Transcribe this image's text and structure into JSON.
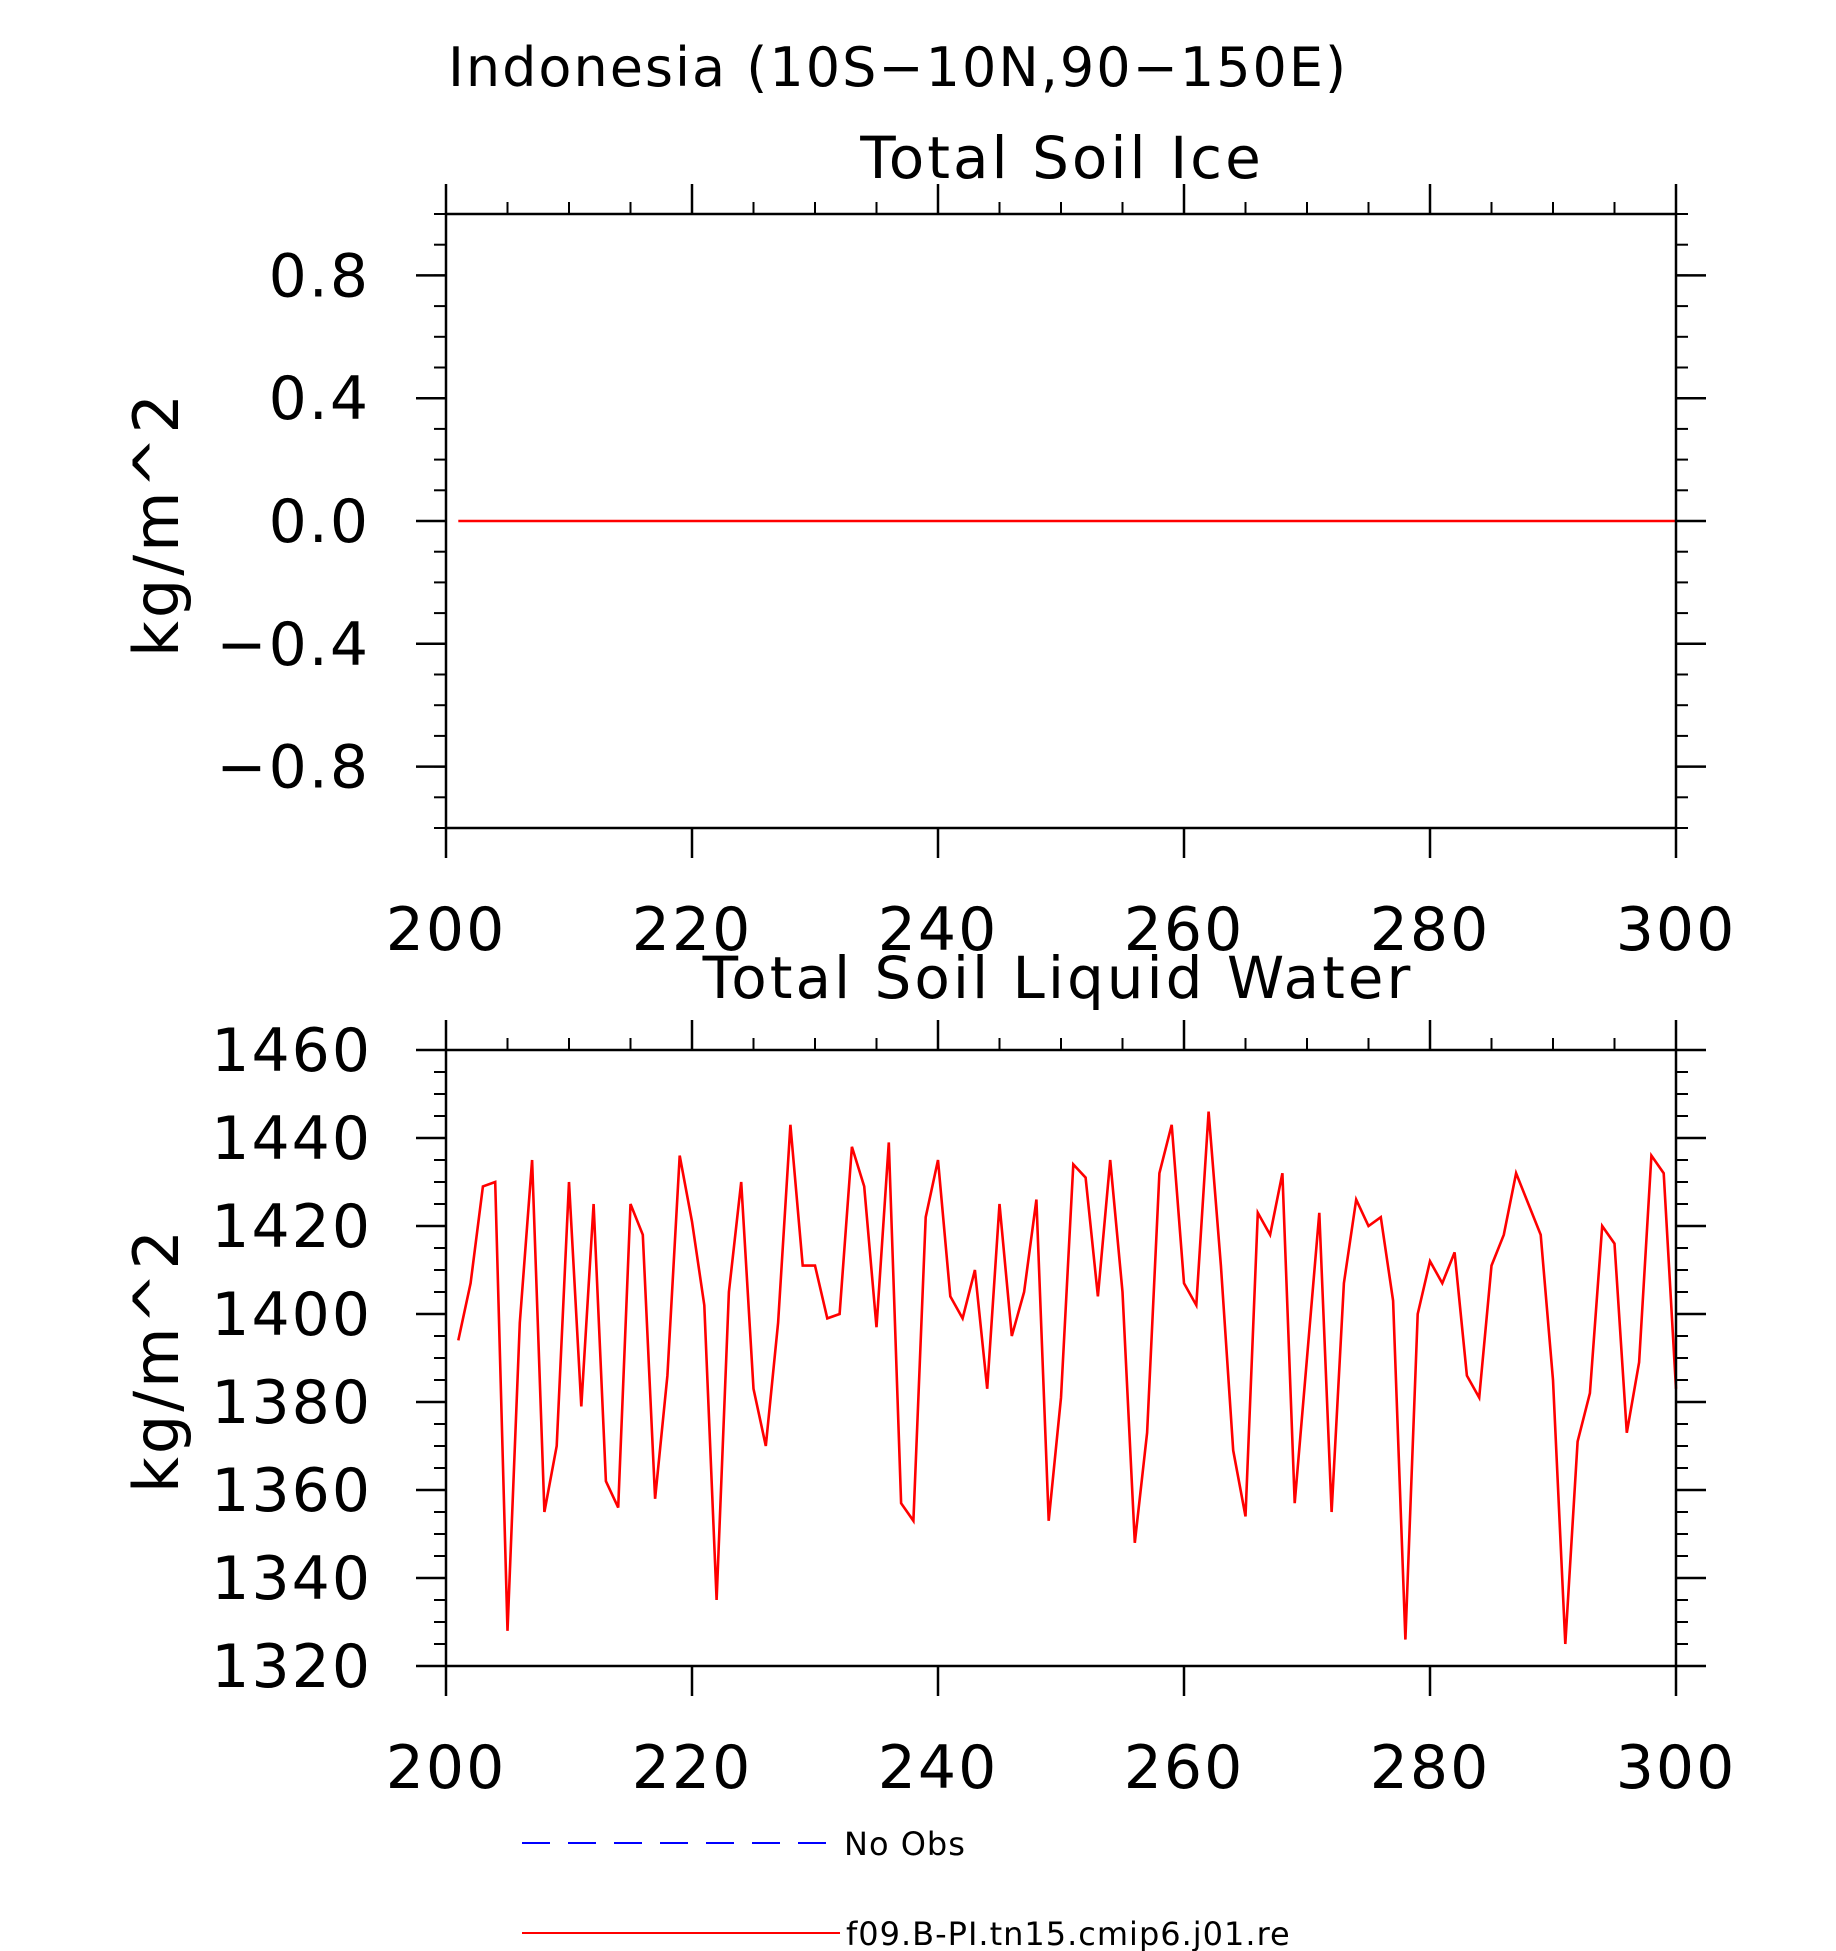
{
  "figure_title": "Indonesia (10S-10N,90-150E)",
  "colors": {
    "model": "#ff0000",
    "obs": "#0000ff",
    "axes": "#000000"
  },
  "legend": [
    {
      "label": "No Obs",
      "style": "dashed",
      "color": "#0000ff"
    },
    {
      "label": "f09.B-PI.tn15.cmip6.j01.re",
      "style": "solid",
      "color": "#ff0000"
    }
  ],
  "chart_data": [
    {
      "type": "line",
      "title": "Total Soil Ice",
      "xlabel": "",
      "ylabel": "kg/m^2",
      "xlim": [
        200,
        300
      ],
      "ylim": [
        -1,
        1
      ],
      "x_ticks": [
        200,
        220,
        240,
        260,
        280,
        300
      ],
      "x_tick_labels": [
        "200",
        "220",
        "240",
        "260",
        "280",
        "300"
      ],
      "y_ticks": [
        -0.8,
        -0.4,
        0,
        0.4,
        0.8
      ],
      "y_tick_labels": [
        "-0.8",
        "-0.4",
        "0.0",
        "0.4",
        "0.8"
      ],
      "grid": false,
      "series": [
        {
          "name": "f09.B-PI.tn15.cmip6.j01.re",
          "color": "#ff0000",
          "x_start": 201,
          "x_step": 1,
          "values": [
            0,
            0,
            0,
            0,
            0,
            0,
            0,
            0,
            0,
            0,
            0,
            0,
            0,
            0,
            0,
            0,
            0,
            0,
            0,
            0,
            0,
            0,
            0,
            0,
            0,
            0,
            0,
            0,
            0,
            0,
            0,
            0,
            0,
            0,
            0,
            0,
            0,
            0,
            0,
            0,
            0,
            0,
            0,
            0,
            0,
            0,
            0,
            0,
            0,
            0,
            0,
            0,
            0,
            0,
            0,
            0,
            0,
            0,
            0,
            0,
            0,
            0,
            0,
            0,
            0,
            0,
            0,
            0,
            0,
            0,
            0,
            0,
            0,
            0,
            0,
            0,
            0,
            0,
            0,
            0,
            0,
            0,
            0,
            0,
            0,
            0,
            0,
            0,
            0,
            0,
            0,
            0,
            0,
            0,
            0,
            0,
            0,
            0,
            0,
            0
          ]
        }
      ]
    },
    {
      "type": "line",
      "title": "Total Soil Liquid Water",
      "xlabel": "",
      "ylabel": "kg/m^2",
      "xlim": [
        200,
        300
      ],
      "ylim": [
        1320,
        1460
      ],
      "x_ticks": [
        200,
        220,
        240,
        260,
        280,
        300
      ],
      "x_tick_labels": [
        "200",
        "220",
        "240",
        "260",
        "280",
        "300"
      ],
      "y_ticks": [
        1320,
        1340,
        1360,
        1380,
        1400,
        1420,
        1440,
        1460
      ],
      "y_tick_labels": [
        "1320",
        "1340",
        "1360",
        "1380",
        "1400",
        "1420",
        "1440",
        "1460"
      ],
      "grid": false,
      "series": [
        {
          "name": "f09.B-PI.tn15.cmip6.j01.re",
          "color": "#ff0000",
          "x_start": 201,
          "x_step": 1,
          "values": [
            1394,
            1407,
            1429,
            1430,
            1328,
            1398,
            1435,
            1355,
            1370,
            1430,
            1379,
            1425,
            1362,
            1356,
            1425,
            1418,
            1358,
            1386,
            1436,
            1421,
            1402,
            1335,
            1405,
            1430,
            1383,
            1370,
            1398,
            1443,
            1411,
            1411,
            1399,
            1400,
            1438,
            1429,
            1397,
            1439,
            1357,
            1353,
            1422,
            1435,
            1404,
            1399,
            1410,
            1383,
            1425,
            1395,
            1405,
            1426,
            1353,
            1381,
            1434,
            1431,
            1404,
            1435,
            1405,
            1348,
            1373,
            1432,
            1443,
            1407,
            1402,
            1446,
            1411,
            1369,
            1354,
            1423,
            1418,
            1432,
            1357,
            1390,
            1423,
            1355,
            1407,
            1426,
            1420,
            1422,
            1403,
            1326,
            1400,
            1412,
            1407,
            1414,
            1386,
            1381,
            1411,
            1418,
            1432,
            1425,
            1418,
            1385,
            1325,
            1371,
            1382,
            1420,
            1416,
            1373,
            1389,
            1436,
            1432,
            1383
          ]
        }
      ]
    }
  ]
}
